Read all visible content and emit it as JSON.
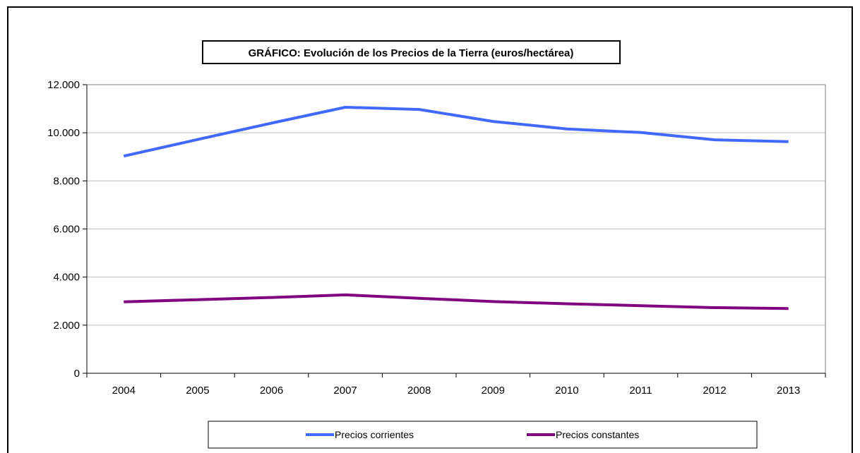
{
  "chart_data": {
    "type": "line",
    "title": "GRÁFICO: Evolución de los Precios de la Tierra (euros/hectárea)",
    "categories": [
      "2004",
      "2005",
      "2006",
      "2007",
      "2008",
      "2009",
      "2010",
      "2011",
      "2012",
      "2013"
    ],
    "series": [
      {
        "name": "Precios corrientes",
        "color": "#4169FF",
        "values": [
          9030,
          9720,
          10400,
          11060,
          10970,
          10470,
          10160,
          10010,
          9710,
          9630
        ]
      },
      {
        "name": "Precios constantes",
        "color": "#800080",
        "values": [
          2970,
          3060,
          3150,
          3260,
          3120,
          2980,
          2890,
          2810,
          2730,
          2690
        ]
      }
    ],
    "ylim": [
      0,
      12000
    ],
    "yticks": [
      0,
      2000,
      4000,
      6000,
      8000,
      10000,
      12000
    ],
    "ytick_labels": [
      "0",
      "2.000",
      "4.000",
      "6.000",
      "8.000",
      "10.000",
      "12.000"
    ],
    "xlabel": "",
    "ylabel": "",
    "grid": true,
    "legend_position": "bottom"
  }
}
